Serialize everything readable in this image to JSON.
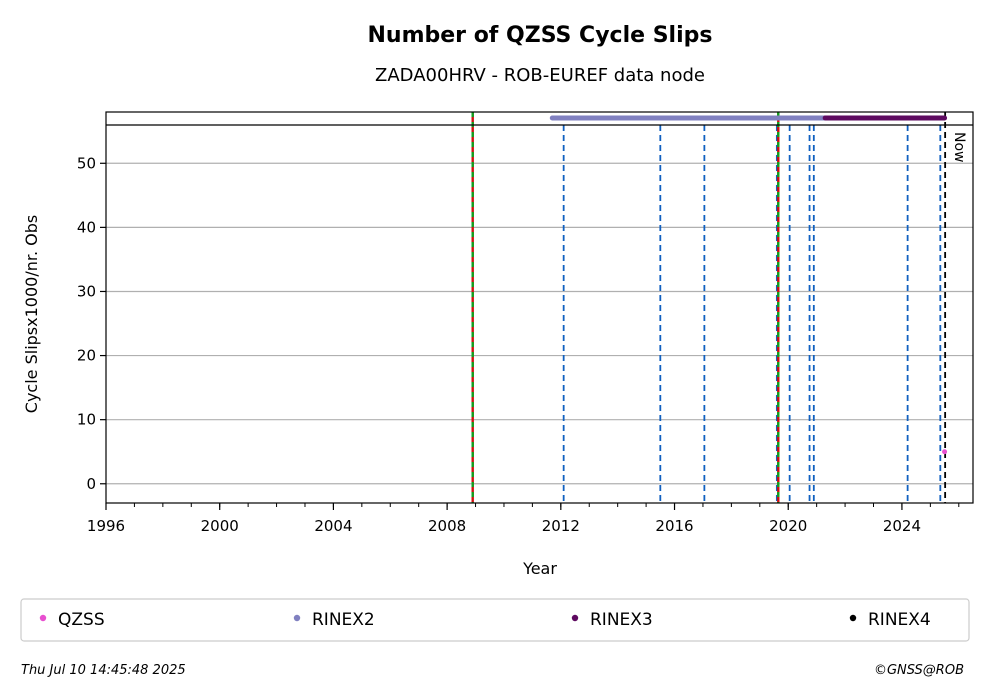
{
  "chart_data": {
    "type": "scatter",
    "title": "Number of QZSS Cycle Slips",
    "subtitle": "ZADA00HRV - ROB-EUREF data node",
    "xlabel": "Year",
    "ylabel": "Cycle Slipsx1000/nr. Obs",
    "xlim": [
      1996,
      2026.5
    ],
    "ylim": [
      -3,
      58
    ],
    "x_ticks": [
      1996,
      2000,
      2004,
      2008,
      2012,
      2016,
      2020,
      2024
    ],
    "y_ticks": [
      0,
      10,
      20,
      30,
      40,
      50
    ],
    "grid": "horizontal",
    "series": [
      {
        "name": "QZSS",
        "color": "#e84fd0",
        "x": [
          2025.5
        ],
        "y": [
          5
        ]
      }
    ],
    "availability_bars": [
      {
        "name": "RINEX2",
        "color": "#8080c0",
        "start": 2011.7,
        "end": 2021.3
      },
      {
        "name": "RINEX3",
        "color": "#5e0a60",
        "start": 2021.3,
        "end": 2025.5
      },
      {
        "name": "RINEX4",
        "color": "#000000",
        "start": 2025.5,
        "end": 2025.5
      }
    ],
    "event_lines_blue": [
      2012.1,
      2015.5,
      2017.05,
      2019.6,
      2020.05,
      2020.75,
      2020.9,
      2024.2,
      2025.35
    ],
    "event_lines_red_green": [
      2008.9,
      2019.65
    ],
    "now_line": {
      "x": 2025.52,
      "label": "Now"
    },
    "legend": {
      "placement": "bottom",
      "entries": [
        {
          "label": "QZSS",
          "color": "#e84fd0"
        },
        {
          "label": "RINEX2",
          "color": "#8080c0"
        },
        {
          "label": "RINEX3",
          "color": "#5e0a60"
        },
        {
          "label": "RINEX4",
          "color": "#000000"
        }
      ]
    }
  },
  "footer": {
    "timestamp": "Thu Jul 10 14:45:48 2025",
    "credit": "©GNSS@ROB"
  }
}
